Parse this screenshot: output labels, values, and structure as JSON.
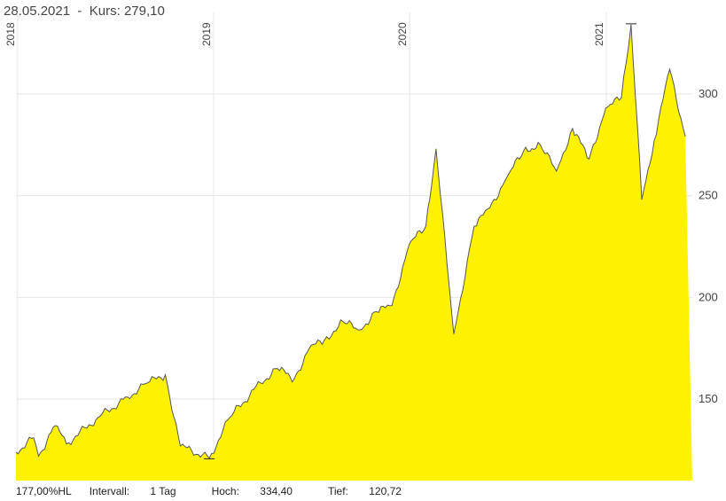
{
  "header": {
    "date": "28.05.2021",
    "separator": "-",
    "kurs_label": "Kurs:",
    "kurs_value": "279,10"
  },
  "footer": {
    "hl_text": "177,00%HL",
    "interval_label": "Intervall:",
    "interval_value": "1 Tag",
    "high_label": "Hoch:",
    "high_value": "334,40",
    "low_label": "Tief:",
    "low_value": "120,72"
  },
  "colors": {
    "fill": "#fff200",
    "line": "#555555",
    "grid": "#e6e6e6"
  },
  "chart_data": {
    "type": "area",
    "title": "",
    "xlabel": "",
    "ylabel": "",
    "x_tick_labels": [
      "2018",
      "2019",
      "2020",
      "2021"
    ],
    "y_ticks": [
      150,
      200,
      250,
      300
    ],
    "ylim": [
      110,
      340
    ],
    "xlim": [
      "2017-12-29",
      "2021-06-10"
    ],
    "grid": true,
    "high": {
      "date": "2021-02-16",
      "value": 334.4
    },
    "low": {
      "date": "2018-12-24",
      "value": 120.72
    },
    "x": [
      "2017-12-29",
      "2018-01-31",
      "2018-02-09",
      "2018-03-12",
      "2018-04-02",
      "2018-05-31",
      "2018-07-25",
      "2018-08-31",
      "2018-10-03",
      "2018-10-31",
      "2018-12-24",
      "2019-01-31",
      "2019-03-29",
      "2019-04-30",
      "2019-05-31",
      "2019-06-28",
      "2019-07-26",
      "2019-08-30",
      "2019-09-30",
      "2019-10-31",
      "2019-11-29",
      "2019-12-31",
      "2020-01-31",
      "2020-02-19",
      "2020-03-23",
      "2020-04-30",
      "2020-05-29",
      "2020-06-30",
      "2020-07-31",
      "2020-08-31",
      "2020-09-30",
      "2020-10-30",
      "2020-11-30",
      "2020-12-31",
      "2021-01-29",
      "2021-02-16",
      "2021-03-08",
      "2021-03-31",
      "2021-04-29",
      "2021-05-28"
    ],
    "values": [
      124,
      131,
      122,
      137,
      128,
      141,
      151,
      158,
      162,
      127,
      121,
      141,
      158,
      165,
      160,
      175,
      179,
      188,
      184,
      193,
      196,
      226,
      235,
      273,
      182,
      235,
      244,
      259,
      272,
      275,
      262,
      283,
      268,
      293,
      298,
      334,
      248,
      277,
      312,
      279
    ]
  }
}
